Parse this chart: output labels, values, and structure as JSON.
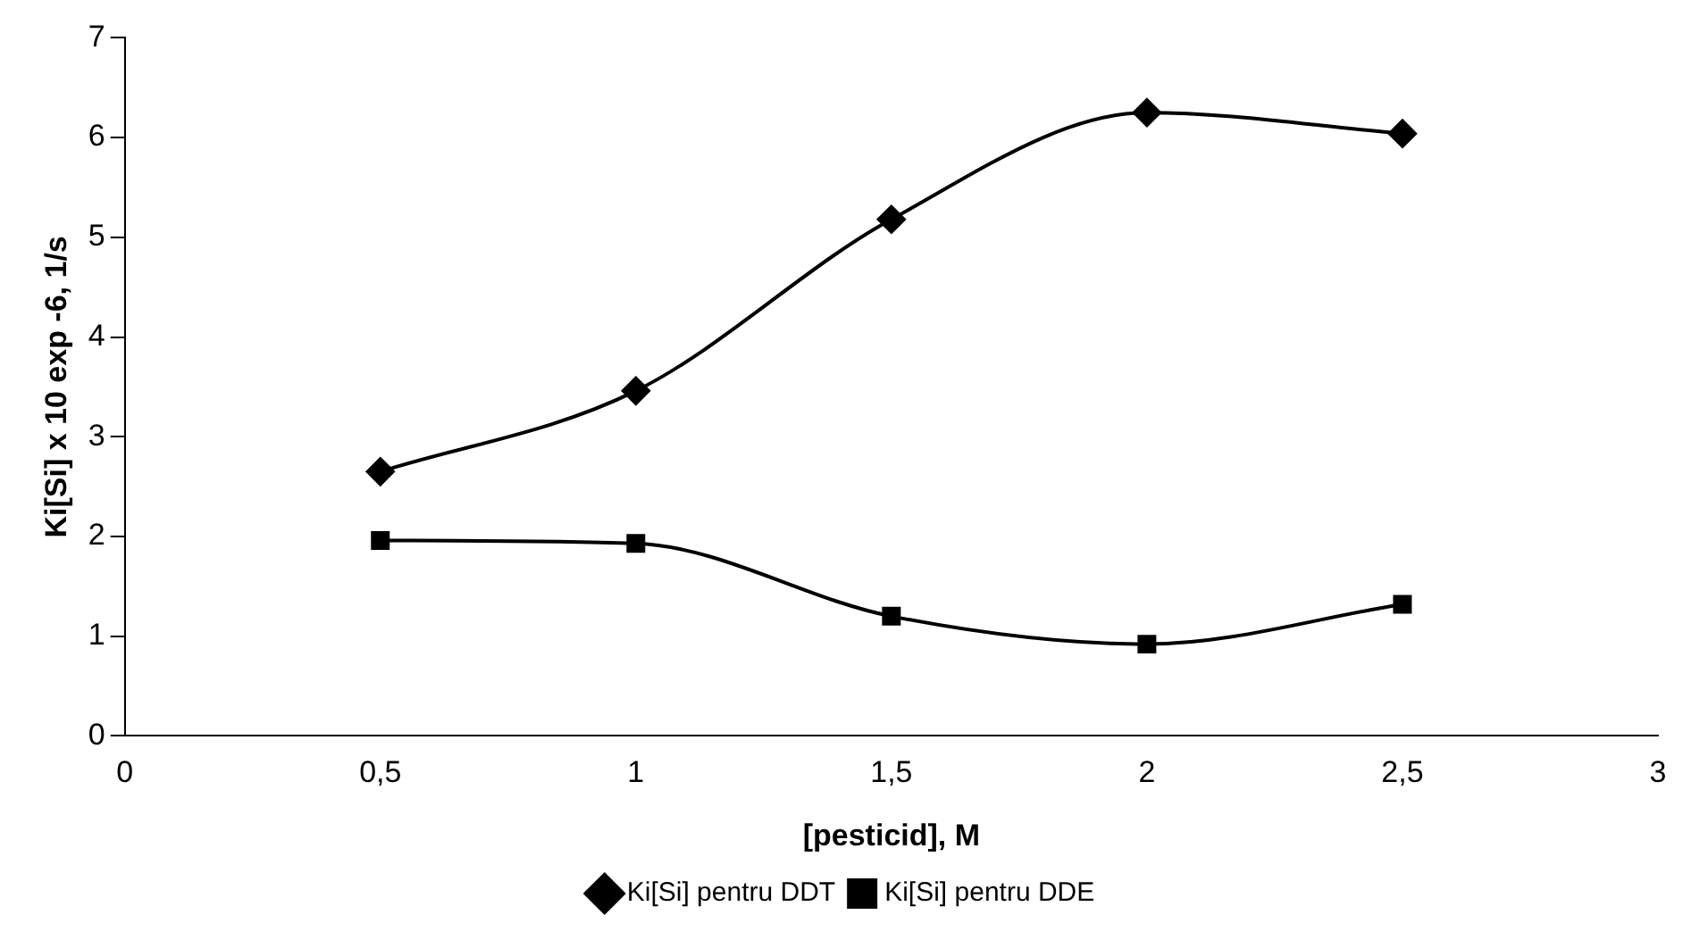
{
  "chart_data": {
    "type": "line",
    "xlabel": "[pesticid], M",
    "ylabel": "Ki[Si] x 10 exp -6, 1/s",
    "x": [
      0.5,
      1,
      1.5,
      2,
      2.5
    ],
    "series": [
      {
        "name": "Ki[Si] pentru DDT",
        "color": "#000000",
        "marker": "diamond",
        "values": [
          2.65,
          3.46,
          5.18,
          6.25,
          6.04
        ]
      },
      {
        "name": "Ki[Si] pentru DDE",
        "color": "#000000",
        "marker": "square",
        "values": [
          1.96,
          1.93,
          1.2,
          0.92,
          1.32
        ]
      }
    ],
    "xlim": [
      0,
      3
    ],
    "xticks": [
      0,
      {
        "value": 0.5,
        "label": "0,5"
      },
      1,
      {
        "value": 1.5,
        "label": "1,5"
      },
      2,
      {
        "value": 2.5,
        "label": "2,5"
      },
      3
    ],
    "ylim": [
      0,
      7
    ],
    "yticks": [
      0,
      1,
      2,
      3,
      4,
      5,
      6,
      7
    ],
    "grid": false,
    "legend": "bottom",
    "line_style": "solid"
  }
}
